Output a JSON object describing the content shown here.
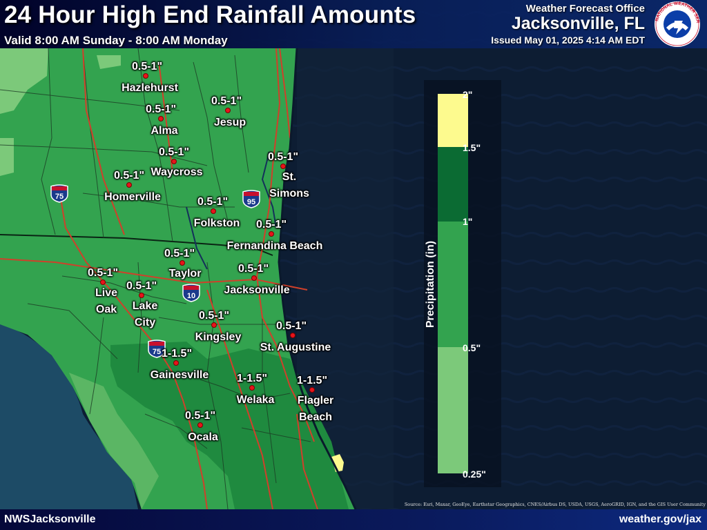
{
  "header": {
    "title": "24 Hour High End Rainfall Amounts",
    "valid": "Valid 8:00 AM Sunday - 8:00 AM Monday",
    "office_label": "Weather Forecast Office",
    "office_city": "Jacksonville, FL",
    "issued": "Issued May 01, 2025 4:14 AM EDT",
    "logo_text": "NATIONAL WEATHER SERVICE"
  },
  "footer": {
    "left": "NWSJacksonville",
    "right": "weather.gov/jax",
    "source": "Source: Esri, Maxar, GeoEye, Earthstar Geographics, CNES/Airbus DS, USDA, USGS, AeroGRID, IGN, and the GIS User Community"
  },
  "legend": {
    "title": "Precipitation (in)",
    "bins": [
      {
        "label": "2\"",
        "color": "#fdfa8e"
      },
      {
        "label": "1.5\"",
        "color": "#0b6b33"
      },
      {
        "label": "1\"",
        "color": "#33a34f"
      },
      {
        "label": "0.5\"",
        "color": "#7cc97a"
      },
      {
        "label": "0.25\"",
        "color": ""
      }
    ]
  },
  "cities": [
    {
      "name": "Hazlehurst",
      "amount": "0.5-1\""
    },
    {
      "name": "Alma",
      "amount": "0.5-1\""
    },
    {
      "name": "Jesup",
      "amount": "0.5-1\""
    },
    {
      "name": "Waycross",
      "amount": "0.5-1\""
    },
    {
      "name": "Homerville",
      "amount": "0.5-1\""
    },
    {
      "name": "St.\nSimons",
      "amount": "0.5-1\""
    },
    {
      "name": "Folkston",
      "amount": "0.5-1\""
    },
    {
      "name": "Fernandina Beach",
      "amount": "0.5-1\""
    },
    {
      "name": "Taylor",
      "amount": "0.5-1\""
    },
    {
      "name": "Jacksonville",
      "amount": "0.5-1\""
    },
    {
      "name": "Live\nOak",
      "amount": "0.5-1\""
    },
    {
      "name": "Lake\nCity",
      "amount": "0.5-1\""
    },
    {
      "name": "Kingsley",
      "amount": "0.5-1\""
    },
    {
      "name": "St. Augustine",
      "amount": "0.5-1\""
    },
    {
      "name": "Gainesville",
      "amount": "1-1.5\""
    },
    {
      "name": "Welaka",
      "amount": "1-1.5\""
    },
    {
      "name": "Flagler\nBeach",
      "amount": "1-1.5\""
    },
    {
      "name": "Ocala",
      "amount": "0.5-1\""
    }
  ],
  "interstates": [
    "75",
    "95",
    "10",
    "75"
  ],
  "colors": {
    "ocean": "#0d1d33",
    "gulf": "#1a4a66",
    "land_base": "#33a34f",
    "land_light": "#7cc97a",
    "land_dark": "#1f8a3f",
    "yellow": "#fdfa8e",
    "roads": "#d0402a",
    "county_lines": "#1c3a24",
    "city_dot": "#e8141b"
  }
}
